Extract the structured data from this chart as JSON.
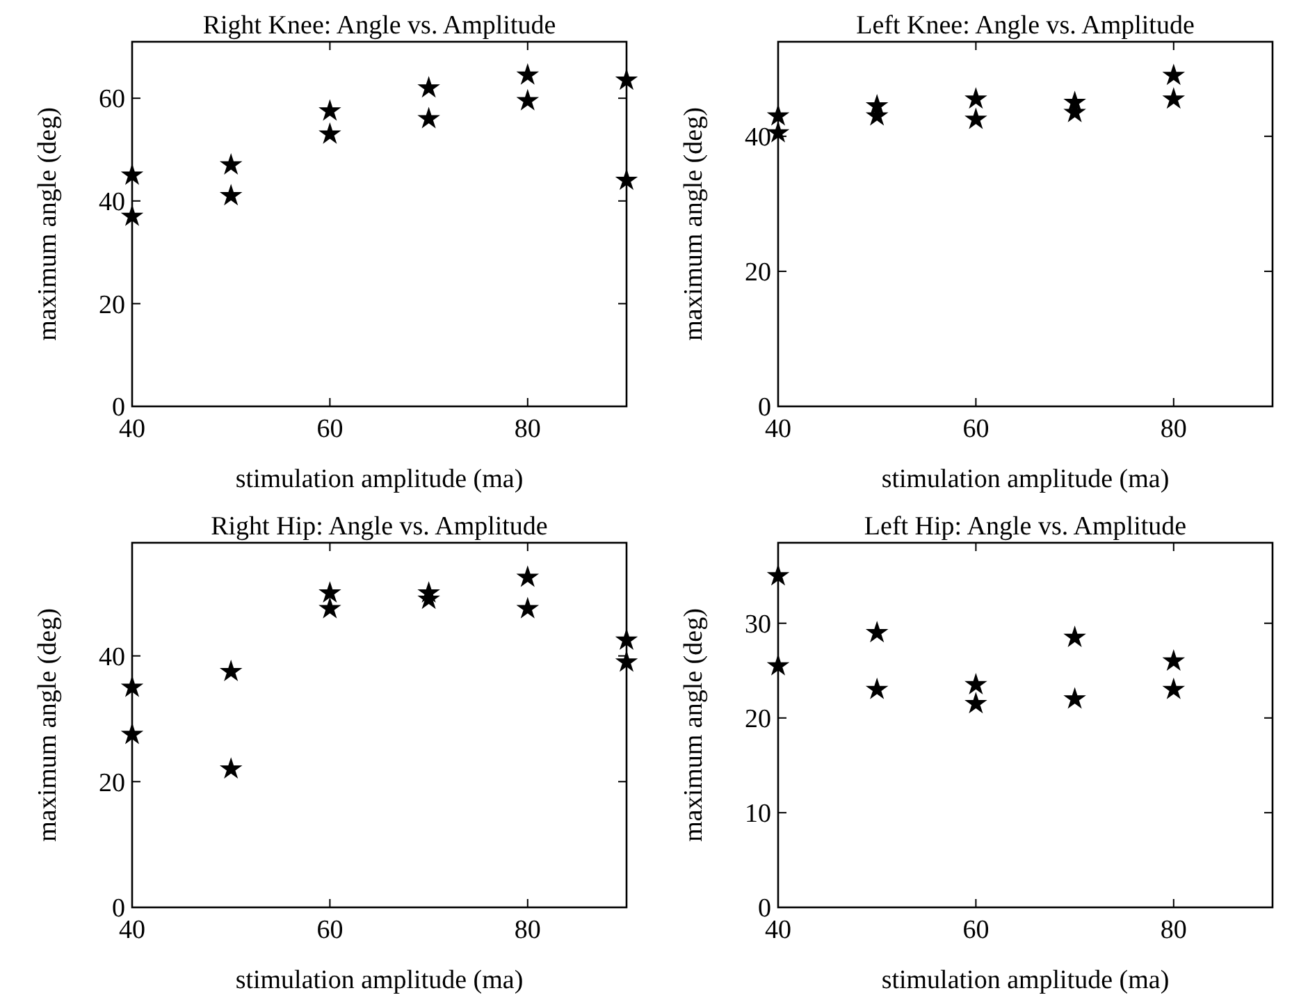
{
  "chart_data": [
    {
      "type": "scatter",
      "title": "Right Knee: Angle vs. Amplitude",
      "xlabel": "stimulation amplitude (ma)",
      "ylabel": "maximum angle (deg)",
      "xlim": [
        40,
        90
      ],
      "xticks": [
        40,
        60,
        80
      ],
      "ylim": [
        0,
        71
      ],
      "yticks": [
        0,
        20,
        40,
        60
      ],
      "marker": "star",
      "grid": false,
      "series": [
        {
          "color": "#000000",
          "x": [
            40,
            40,
            50,
            50,
            60,
            60,
            70,
            70,
            80,
            80,
            90,
            90
          ],
          "values": [
            45,
            37,
            47,
            41,
            57.5,
            53,
            62,
            56,
            64.5,
            59.5,
            63.5,
            44
          ]
        }
      ]
    },
    {
      "type": "scatter",
      "title": "Left Knee: Angle vs. Amplitude",
      "xlabel": "stimulation amplitude (ma)",
      "ylabel": "maximum angle (deg)",
      "xlim": [
        40,
        90
      ],
      "xticks": [
        40,
        60,
        80
      ],
      "ylim": [
        0,
        54
      ],
      "yticks": [
        0,
        20,
        40
      ],
      "marker": "star",
      "grid": false,
      "series": [
        {
          "color": "#000000",
          "x": [
            40,
            40,
            50,
            50,
            60,
            60,
            70,
            70,
            80,
            80
          ],
          "values": [
            43,
            40.5,
            44.5,
            43,
            45.5,
            42.5,
            45,
            43.5,
            49,
            45.5
          ]
        }
      ]
    },
    {
      "type": "scatter",
      "title": "Right Hip: Angle vs. Amplitude",
      "xlabel": "stimulation amplitude (ma)",
      "ylabel": "maximum angle (deg)",
      "xlim": [
        40,
        90
      ],
      "xticks": [
        40,
        60,
        80
      ],
      "ylim": [
        0,
        58
      ],
      "yticks": [
        0,
        20,
        40
      ],
      "marker": "star",
      "grid": false,
      "series": [
        {
          "color": "#000000",
          "x": [
            40,
            40,
            50,
            50,
            60,
            60,
            70,
            70,
            80,
            80,
            90,
            90
          ],
          "values": [
            35,
            27.5,
            37.5,
            22,
            50,
            47.5,
            50,
            49,
            52.5,
            47.5,
            42.5,
            39
          ]
        }
      ]
    },
    {
      "type": "scatter",
      "title": "Left Hip: Angle vs. Amplitude",
      "xlabel": "stimulation amplitude (ma)",
      "ylabel": "maximum angle (deg)",
      "xlim": [
        40,
        90
      ],
      "xticks": [
        40,
        60,
        80
      ],
      "ylim": [
        0,
        38.5
      ],
      "yticks": [
        0,
        10,
        20,
        30
      ],
      "marker": "star",
      "grid": false,
      "series": [
        {
          "color": "#000000",
          "x": [
            40,
            40,
            50,
            50,
            60,
            60,
            70,
            70,
            80,
            80
          ],
          "values": [
            35,
            25.5,
            29,
            23,
            23.5,
            21.5,
            28.5,
            22,
            26,
            23
          ]
        }
      ]
    }
  ]
}
